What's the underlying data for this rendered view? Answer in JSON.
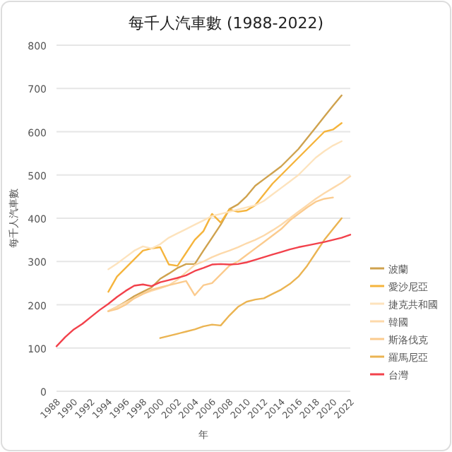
{
  "chart_data": {
    "type": "line",
    "title": "每千人汽車數 (1988-2022)",
    "xlabel": "年",
    "ylabel": "每千人汽車數",
    "x": [
      1988,
      1989,
      1990,
      1991,
      1992,
      1993,
      1994,
      1995,
      1996,
      1997,
      1998,
      1999,
      2000,
      2001,
      2002,
      2003,
      2004,
      2005,
      2006,
      2007,
      2008,
      2009,
      2010,
      2011,
      2012,
      2013,
      2014,
      2015,
      2016,
      2017,
      2018,
      2019,
      2020,
      2021,
      2022
    ],
    "xlim": [
      1988,
      2022
    ],
    "xticks": [
      1988,
      1990,
      1992,
      1994,
      1996,
      1998,
      2000,
      2002,
      2004,
      2006,
      2008,
      2010,
      2012,
      2014,
      2016,
      2018,
      2020,
      2022
    ],
    "ylim": [
      0,
      800
    ],
    "yticks": [
      0,
      100,
      200,
      300,
      400,
      500,
      600,
      700,
      800
    ],
    "grid": "y",
    "legend": "right",
    "marker": "none",
    "line_style": "solid",
    "series": [
      {
        "name": "波蘭",
        "color": "#cfa24e",
        "values": [
          null,
          null,
          null,
          null,
          null,
          null,
          185,
          195,
          207,
          220,
          230,
          240,
          260,
          272,
          285,
          294,
          294,
          325,
          355,
          385,
          421,
          432,
          451,
          475,
          490,
          505,
          520,
          540,
          560,
          585,
          610,
          635,
          660,
          684,
          null
        ]
      },
      {
        "name": "愛沙尼亞",
        "color": "#f5b43c",
        "values": [
          null,
          null,
          null,
          null,
          null,
          null,
          230,
          265,
          285,
          305,
          325,
          330,
          333,
          293,
          290,
          320,
          350,
          370,
          410,
          390,
          420,
          415,
          418,
          430,
          455,
          480,
          500,
          520,
          540,
          560,
          580,
          600,
          605,
          620,
          null
        ]
      },
      {
        "name": "捷克共和國",
        "color": "#fde3bd",
        "values": [
          null,
          null,
          null,
          null,
          null,
          null,
          282,
          295,
          310,
          325,
          335,
          330,
          340,
          355,
          365,
          375,
          385,
          395,
          405,
          410,
          415,
          420,
          425,
          430,
          440,
          455,
          470,
          485,
          500,
          520,
          540,
          555,
          568,
          578,
          null
        ]
      },
      {
        "name": "韓國",
        "color": "#fdd9aa",
        "values": [
          null,
          null,
          null,
          null,
          null,
          null,
          185,
          195,
          205,
          215,
          225,
          232,
          238,
          245,
          258,
          275,
          292,
          300,
          310,
          318,
          325,
          333,
          342,
          350,
          360,
          372,
          385,
          400,
          415,
          430,
          445,
          458,
          470,
          482,
          497
        ]
      },
      {
        "name": "斯洛伐克",
        "color": "#fbcb8e",
        "values": [
          null,
          null,
          null,
          null,
          null,
          null,
          185,
          190,
          200,
          215,
          225,
          235,
          240,
          245,
          250,
          255,
          222,
          245,
          250,
          270,
          290,
          300,
          315,
          330,
          345,
          360,
          375,
          395,
          410,
          425,
          438,
          445,
          448,
          null,
          null
        ]
      },
      {
        "name": "羅馬尼亞",
        "color": "#ebb452",
        "values": [
          null,
          null,
          null,
          null,
          null,
          null,
          null,
          null,
          null,
          null,
          null,
          null,
          123,
          128,
          133,
          138,
          143,
          150,
          154,
          152,
          175,
          195,
          207,
          212,
          215,
          225,
          235,
          248,
          265,
          290,
          320,
          350,
          375,
          400,
          null
        ]
      },
      {
        "name": "台灣",
        "color": "#f2414b",
        "values": [
          104,
          125,
          143,
          156,
          172,
          188,
          202,
          218,
          232,
          244,
          247,
          243,
          252,
          257,
          262,
          268,
          278,
          285,
          293,
          294,
          293,
          294,
          298,
          304,
          310,
          316,
          322,
          328,
          333,
          337,
          341,
          345,
          350,
          355,
          362
        ]
      }
    ]
  }
}
